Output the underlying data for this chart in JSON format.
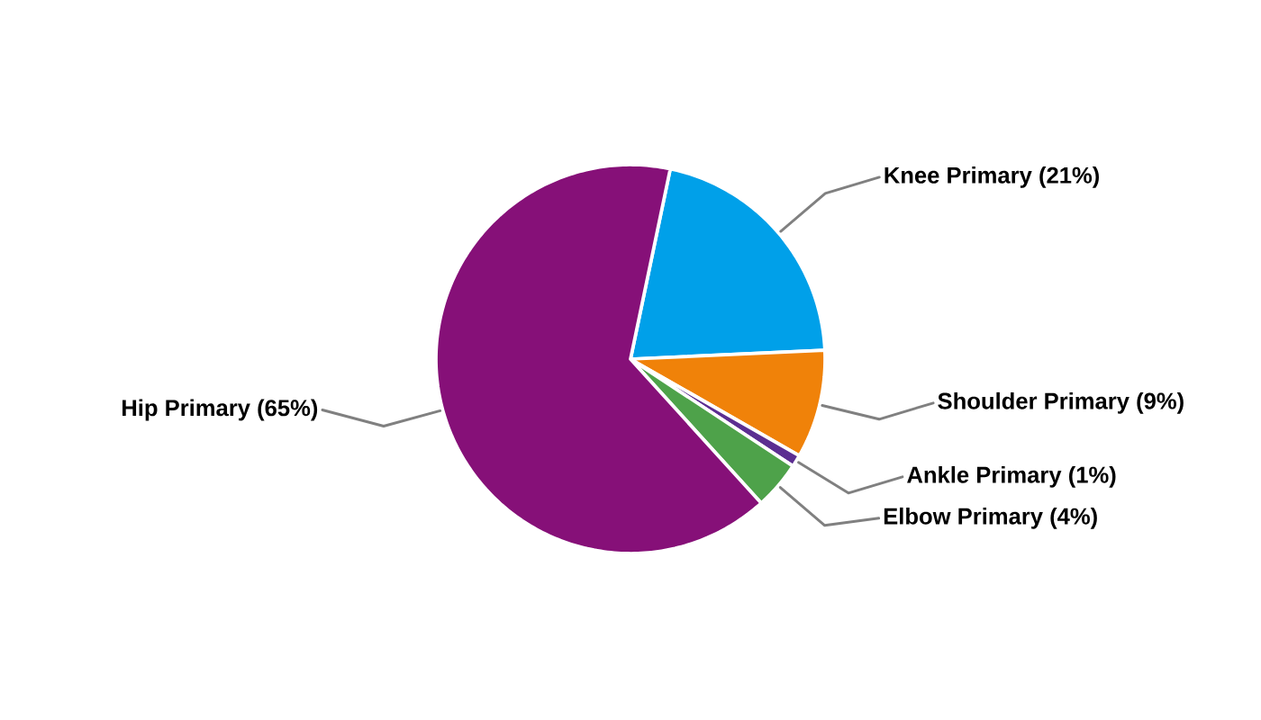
{
  "chart_data": {
    "type": "pie",
    "categories": [
      "Knee Primary",
      "Shoulder Primary",
      "Ankle Primary",
      "Elbow Primary",
      "Hip Primary"
    ],
    "values": [
      21,
      9,
      1,
      4,
      65
    ],
    "colors": [
      "#00a0e9",
      "#f08209",
      "#5c2e91",
      "#4ea24a",
      "#861078"
    ],
    "value_labels": [
      "(21%)",
      "(9%)",
      "(1%)",
      "(4%)",
      "(65%)"
    ]
  }
}
